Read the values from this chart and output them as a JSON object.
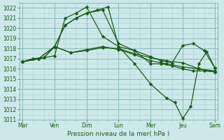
{
  "xlabel": "Pression niveau de la mer( hPa )",
  "ylim": [
    1011,
    1022.5
  ],
  "yticks": [
    1011,
    1012,
    1013,
    1014,
    1015,
    1016,
    1017,
    1018,
    1019,
    1020,
    1021,
    1022
  ],
  "xtick_labels": [
    "Mar",
    "Ven",
    "Dim",
    "Lun",
    "Mer",
    "Jeu",
    "Sam"
  ],
  "xtick_positions": [
    0,
    1,
    2,
    3,
    4,
    5,
    6
  ],
  "xlim": [
    -0.1,
    6.1
  ],
  "bg_color": "#cce8e8",
  "grid_color_major": "#88bbbb",
  "grid_color_minor": "#aad4d4",
  "line_color": "#1a5c1a",
  "marker": "D",
  "markersize": 1.8,
  "linewidth": 0.9,
  "series": [
    {
      "x": [
        0.0,
        0.33,
        0.67,
        1.0,
        1.33,
        1.67,
        2.0,
        2.33,
        2.67,
        3.0,
        3.5,
        4.0,
        4.33,
        4.67,
        5.0,
        5.33,
        5.67,
        6.0
      ],
      "y": [
        1016.7,
        1017.0,
        1017.1,
        1018.2,
        1020.3,
        1021.0,
        1021.5,
        1021.8,
        1022.1,
        1018.2,
        1017.8,
        1016.5,
        1016.5,
        1016.3,
        1016.0,
        1015.8,
        1015.8,
        1015.7
      ]
    },
    {
      "x": [
        0.0,
        0.33,
        0.67,
        1.0,
        1.33,
        1.67,
        2.0,
        2.5,
        3.0,
        3.5,
        4.0,
        4.33,
        4.67,
        5.0,
        5.33,
        5.67,
        6.0
      ],
      "y": [
        1016.7,
        1017.0,
        1017.1,
        1018.2,
        1020.3,
        1021.0,
        1021.5,
        1021.8,
        1018.5,
        1017.8,
        1017.2,
        1016.8,
        1016.6,
        1018.3,
        1018.5,
        1017.8,
        1016.1
      ]
    },
    {
      "x": [
        0.0,
        0.5,
        1.0,
        1.5,
        2.0,
        2.5,
        3.0,
        3.5,
        4.0,
        4.5,
        5.0,
        5.5,
        6.0
      ],
      "y": [
        1016.7,
        1017.0,
        1018.2,
        1017.6,
        1017.8,
        1018.1,
        1018.0,
        1017.5,
        1017.1,
        1016.8,
        1016.6,
        1016.0,
        1015.8
      ]
    },
    {
      "x": [
        0.0,
        0.5,
        1.0,
        1.5,
        2.0,
        2.5,
        3.0,
        3.5,
        4.0,
        4.5,
        5.0,
        5.5,
        6.0
      ],
      "y": [
        1016.7,
        1017.0,
        1018.2,
        1017.6,
        1017.9,
        1018.2,
        1017.9,
        1017.4,
        1016.8,
        1016.5,
        1016.2,
        1016.0,
        1015.7
      ]
    },
    {
      "x": [
        0.0,
        0.5,
        1.0,
        1.33,
        1.67,
        2.0,
        2.5,
        3.0,
        3.5,
        4.0,
        4.5,
        4.75,
        5.0,
        5.25,
        5.5,
        5.75,
        6.0
      ],
      "y": [
        1016.7,
        1017.0,
        1017.3,
        1021.0,
        1021.5,
        1022.1,
        1019.2,
        1018.2,
        1016.5,
        1014.5,
        1013.1,
        1012.7,
        1011.1,
        1012.3,
        1016.5,
        1017.7,
        1016.1
      ]
    }
  ]
}
